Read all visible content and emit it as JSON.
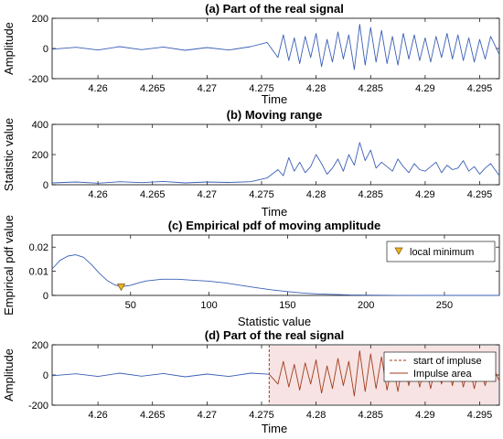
{
  "colors": {
    "signal": "#3a5fb5",
    "impulse": "#a23d1e",
    "onset": "#a23d1e",
    "marker_fill": "#edb120",
    "axis": "#000000"
  },
  "chart_data": [
    {
      "id": "a",
      "type": "line",
      "title": "(a) Part of the real signal",
      "xlabel": "Time",
      "ylabel": "Amplitude",
      "xlim": [
        4.2558,
        4.2968
      ],
      "ylim": [
        -200,
        200
      ],
      "xticks": [
        4.26,
        4.265,
        4.27,
        4.275,
        4.28,
        4.285,
        4.29,
        4.295
      ],
      "xtick_labels": [
        "4.26",
        "4.265",
        "4.27",
        "4.275",
        "4.28",
        "4.285",
        "4.29",
        "4.295"
      ],
      "yticks": [
        -200,
        0,
        200
      ],
      "ytick_labels": [
        "-200",
        "0",
        "200"
      ],
      "series": [
        {
          "x": [
            4.2558,
            4.258,
            4.26,
            4.262,
            4.264,
            4.266,
            4.268,
            4.27,
            4.272,
            4.274,
            4.2755,
            4.2765,
            4.277,
            4.2775,
            4.278,
            4.2785,
            4.279,
            4.2795,
            4.28,
            4.2805,
            4.281,
            4.2815,
            4.282,
            4.2825,
            4.283,
            4.2835,
            4.284,
            4.2845,
            4.285,
            4.2855,
            4.286,
            4.2865,
            4.287,
            4.2875,
            4.288,
            4.2885,
            4.289,
            4.2895,
            4.29,
            4.2905,
            4.291,
            4.2915,
            4.292,
            4.2925,
            4.293,
            4.2935,
            4.294,
            4.2945,
            4.295,
            4.2955,
            4.296,
            4.2968
          ],
          "y": [
            -5,
            8,
            -10,
            12,
            -8,
            10,
            -12,
            6,
            -10,
            12,
            40,
            -60,
            90,
            -80,
            70,
            -100,
            80,
            -60,
            100,
            -120,
            60,
            -90,
            110,
            -70,
            90,
            -140,
            160,
            -110,
            140,
            -90,
            120,
            -100,
            80,
            -110,
            100,
            -70,
            90,
            -80,
            70,
            -90,
            80,
            -60,
            100,
            -70,
            90,
            -80,
            70,
            -90,
            60,
            -70,
            80,
            -40
          ]
        }
      ]
    },
    {
      "id": "b",
      "type": "line",
      "title": "(b) Moving range",
      "xlabel": "Time",
      "ylabel": "Statistic value",
      "xlim": [
        4.2558,
        4.2968
      ],
      "ylim": [
        0,
        400
      ],
      "xticks": [
        4.26,
        4.265,
        4.27,
        4.275,
        4.28,
        4.285,
        4.29,
        4.295
      ],
      "xtick_labels": [
        "4.26",
        "4.265",
        "4.27",
        "4.275",
        "4.28",
        "4.285",
        "4.29",
        "4.295"
      ],
      "yticks": [
        0,
        200,
        400
      ],
      "ytick_labels": [
        "0",
        "200",
        "400"
      ],
      "series": [
        {
          "x": [
            4.2558,
            4.258,
            4.26,
            4.262,
            4.264,
            4.266,
            4.268,
            4.27,
            4.272,
            4.274,
            4.2755,
            4.2765,
            4.277,
            4.2775,
            4.278,
            4.2785,
            4.279,
            4.2795,
            4.28,
            4.2805,
            4.281,
            4.2815,
            4.282,
            4.2825,
            4.283,
            4.2835,
            4.284,
            4.2845,
            4.285,
            4.2855,
            4.286,
            4.2865,
            4.287,
            4.2875,
            4.288,
            4.2885,
            4.289,
            4.2895,
            4.29,
            4.2905,
            4.291,
            4.2915,
            4.292,
            4.2925,
            4.293,
            4.2935,
            4.294,
            4.2945,
            4.295,
            4.2955,
            4.296,
            4.2968
          ],
          "y": [
            12,
            18,
            10,
            20,
            14,
            22,
            12,
            18,
            15,
            20,
            45,
            100,
            60,
            180,
            90,
            150,
            80,
            120,
            200,
            140,
            70,
            110,
            170,
            90,
            200,
            130,
            280,
            160,
            230,
            110,
            150,
            120,
            90,
            170,
            120,
            80,
            140,
            100,
            90,
            120,
            150,
            80,
            130,
            100,
            110,
            160,
            90,
            120,
            70,
            110,
            140,
            60
          ]
        }
      ]
    },
    {
      "id": "c",
      "type": "line",
      "title": "(c) Empirical pdf of moving amplitude",
      "xlabel": "Statistic value",
      "ylabel": "Empirical pdf value",
      "xlim": [
        0,
        285
      ],
      "ylim": [
        0,
        0.025
      ],
      "xticks": [
        50,
        100,
        150,
        200,
        250
      ],
      "xtick_labels": [
        "50",
        "100",
        "150",
        "200",
        "250"
      ],
      "yticks": [
        0,
        0.01,
        0.02
      ],
      "ytick_labels": [
        "0",
        "0.01",
        "0.02"
      ],
      "series": [
        {
          "x": [
            0,
            5,
            10,
            15,
            20,
            25,
            30,
            35,
            40,
            44,
            50,
            55,
            60,
            70,
            80,
            90,
            100,
            110,
            120,
            130,
            140,
            150,
            160,
            170,
            180,
            190,
            200,
            220,
            240,
            260,
            285
          ],
          "y": [
            0.011,
            0.0145,
            0.0163,
            0.0168,
            0.0158,
            0.0128,
            0.0092,
            0.0062,
            0.0043,
            0.0036,
            0.0042,
            0.0052,
            0.006,
            0.0067,
            0.0067,
            0.0063,
            0.0059,
            0.0052,
            0.0042,
            0.0032,
            0.0023,
            0.0016,
            0.001,
            0.0006,
            0.0004,
            0.0002,
            0.0001,
            4e-05,
            1e-05,
            0.0,
            0.0
          ]
        }
      ],
      "markers": [
        {
          "x": 44,
          "y": 0.0036
        }
      ],
      "legend": {
        "position": "top-right",
        "entries": [
          "local minimum"
        ]
      }
    },
    {
      "id": "d",
      "type": "line",
      "title": "(d) Part of the real signal",
      "xlabel": "Time",
      "ylabel": "Amplitude",
      "xlim": [
        4.2558,
        4.2968
      ],
      "ylim": [
        -200,
        200
      ],
      "xticks": [
        4.26,
        4.265,
        4.27,
        4.275,
        4.28,
        4.285,
        4.29,
        4.295
      ],
      "xtick_labels": [
        "4.26",
        "4.265",
        "4.27",
        "4.275",
        "4.28",
        "4.285",
        "4.29",
        "4.295"
      ],
      "yticks": [
        -200,
        0,
        200
      ],
      "ytick_labels": [
        "-200",
        "0",
        "200"
      ],
      "onset_x": 4.2757,
      "series": [
        {
          "x": [
            4.2558,
            4.258,
            4.26,
            4.262,
            4.264,
            4.266,
            4.268,
            4.27,
            4.272,
            4.274,
            4.2757
          ],
          "y": [
            -5,
            8,
            -10,
            12,
            -8,
            10,
            -12,
            6,
            -10,
            12,
            5
          ]
        },
        {
          "x": [
            4.2757,
            4.2765,
            4.277,
            4.2775,
            4.278,
            4.2785,
            4.279,
            4.2795,
            4.28,
            4.2805,
            4.281,
            4.2815,
            4.282,
            4.2825,
            4.283,
            4.2835,
            4.284,
            4.2845,
            4.285,
            4.2855,
            4.286,
            4.2865,
            4.287,
            4.2875,
            4.288,
            4.2885,
            4.289,
            4.2895,
            4.29,
            4.2905,
            4.291,
            4.2915,
            4.292,
            4.2925,
            4.293,
            4.2935,
            4.294,
            4.2945,
            4.295,
            4.2955,
            4.296,
            4.2968
          ],
          "y": [
            5,
            -60,
            90,
            -80,
            70,
            -100,
            80,
            -60,
            100,
            -120,
            60,
            -90,
            110,
            -70,
            90,
            -140,
            160,
            -110,
            140,
            -90,
            120,
            -100,
            80,
            -110,
            100,
            -70,
            90,
            -80,
            70,
            -90,
            80,
            -60,
            100,
            -70,
            90,
            -80,
            70,
            -90,
            60,
            -70,
            80,
            -40
          ]
        }
      ],
      "legend": {
        "position": "top-right",
        "entries": [
          "start of impluse",
          "Impulse area"
        ]
      }
    }
  ]
}
